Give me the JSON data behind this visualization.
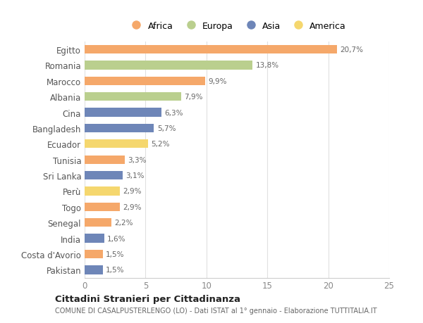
{
  "countries": [
    "Egitto",
    "Romania",
    "Marocco",
    "Albania",
    "Cina",
    "Bangladesh",
    "Ecuador",
    "Tunisia",
    "Sri Lanka",
    "Perù",
    "Togo",
    "Senegal",
    "India",
    "Costa d'Avorio",
    "Pakistan"
  ],
  "values": [
    20.7,
    13.8,
    9.9,
    7.9,
    6.3,
    5.7,
    5.2,
    3.3,
    3.1,
    2.9,
    2.9,
    2.2,
    1.6,
    1.5,
    1.5
  ],
  "labels": [
    "20,7%",
    "13,8%",
    "9,9%",
    "7,9%",
    "6,3%",
    "5,7%",
    "5,2%",
    "3,3%",
    "3,1%",
    "2,9%",
    "2,9%",
    "2,2%",
    "1,6%",
    "1,5%",
    "1,5%"
  ],
  "continents": [
    "Africa",
    "Europa",
    "Africa",
    "Europa",
    "Asia",
    "Asia",
    "America",
    "Africa",
    "Asia",
    "America",
    "Africa",
    "Africa",
    "Asia",
    "Africa",
    "Asia"
  ],
  "colors": {
    "Africa": "#F5A86A",
    "Europa": "#BACF8E",
    "Asia": "#6E86B8",
    "America": "#F5D76E"
  },
  "legend_order": [
    "Africa",
    "Europa",
    "Asia",
    "America"
  ],
  "legend_colors": [
    "#F5A86A",
    "#BACF8E",
    "#6E86B8",
    "#F5D76E"
  ],
  "xlim": [
    0,
    25
  ],
  "xticks": [
    0,
    5,
    10,
    15,
    20,
    25
  ],
  "title": "Cittadini Stranieri per Cittadinanza",
  "subtitle": "COMUNE DI CASALPUSTERLENGO (LO) - Dati ISTAT al 1° gennaio - Elaborazione TUTTITALIA.IT",
  "bg_color": "#FFFFFF",
  "bar_height": 0.55,
  "grid_color": "#E0E0E0"
}
